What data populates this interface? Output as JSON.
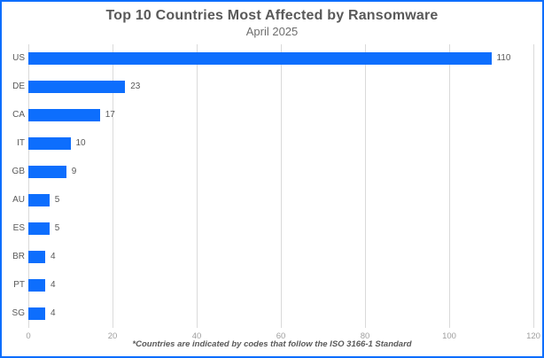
{
  "page": {
    "border_color": "#0d6efd",
    "background": "#ffffff"
  },
  "header": {
    "title": "Top 10 Countries Most Affected by Ransomware",
    "subtitle": "April 2025"
  },
  "footer": {
    "note": "*Countries are indicated by codes that follow the ISO 3166-1 Standard"
  },
  "chart_data": {
    "type": "bar",
    "orientation": "horizontal",
    "title": "Top 10 Countries Most Affected by Ransomware",
    "subtitle": "April 2025",
    "categories": [
      "US",
      "DE",
      "CA",
      "IT",
      "GB",
      "AU",
      "ES",
      "BR",
      "PT",
      "SG"
    ],
    "values": [
      110,
      23,
      17,
      10,
      9,
      5,
      5,
      4,
      4,
      4
    ],
    "value_labels": [
      "110",
      "23",
      "17",
      "10",
      "9",
      "5",
      "5",
      "4",
      "4",
      "4"
    ],
    "xlabel": "",
    "ylabel": "",
    "xlim": [
      0,
      120
    ],
    "x_ticks": [
      0,
      20,
      40,
      60,
      80,
      100,
      120
    ],
    "grid": true,
    "legend": false,
    "bar_color": "#0d6efd",
    "gridline_color": "#dadada",
    "label_color": "#595959",
    "tick_color": "#9e9e9e"
  }
}
